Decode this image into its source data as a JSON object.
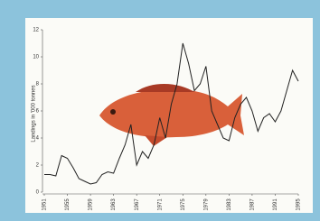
{
  "chart_data": {
    "type": "line",
    "y_label": "Landings in '000 tonnes",
    "x": [
      1951,
      1952,
      1953,
      1954,
      1955,
      1956,
      1957,
      1958,
      1959,
      1960,
      1961,
      1962,
      1963,
      1964,
      1965,
      1966,
      1967,
      1968,
      1969,
      1970,
      1971,
      1972,
      1973,
      1974,
      1975,
      1976,
      1977,
      1978,
      1979,
      1980,
      1981,
      1982,
      1983,
      1984,
      1985,
      1986,
      1987,
      1988,
      1989,
      1990,
      1991,
      1992,
      1993,
      1994,
      1995
    ],
    "values": [
      1.3,
      1.3,
      1.2,
      2.7,
      2.5,
      1.8,
      1.0,
      0.8,
      0.6,
      0.7,
      1.3,
      1.5,
      1.4,
      2.5,
      3.5,
      5.0,
      2.0,
      3.0,
      2.5,
      3.5,
      5.5,
      4.0,
      6.5,
      8.0,
      11.0,
      9.5,
      7.5,
      8.0,
      9.3,
      6.0,
      5.0,
      4.0,
      3.8,
      5.5,
      6.5,
      7.0,
      6.0,
      4.5,
      5.5,
      5.8,
      5.2,
      6.0,
      7.5,
      9.0,
      8.2
    ],
    "color": "#222222",
    "xlim": [
      1951,
      1995
    ],
    "xticks": [
      1951,
      1955,
      1959,
      1963,
      1967,
      1971,
      1975,
      1979,
      1983,
      1987,
      1991,
      1995
    ],
    "ylim": [
      0,
      12
    ],
    "yticks": [
      0,
      2,
      4,
      6,
      8,
      10,
      12
    ]
  }
}
